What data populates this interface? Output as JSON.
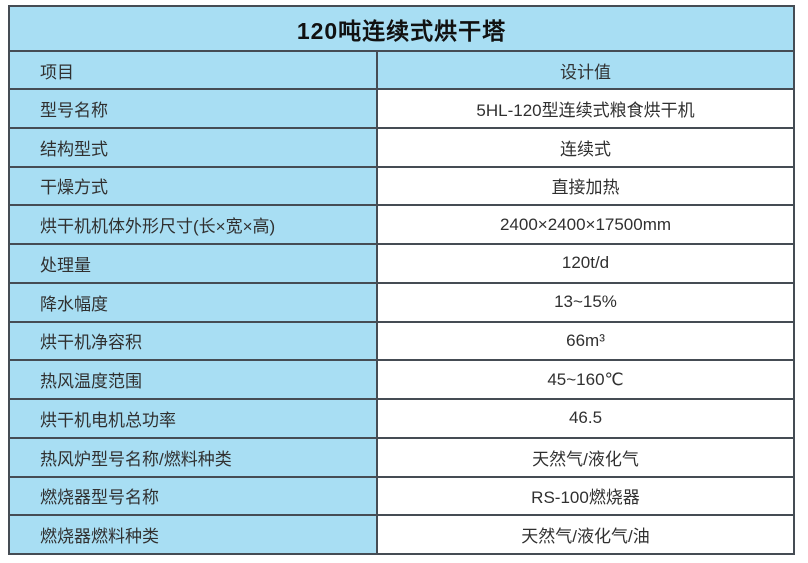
{
  "colors": {
    "cell_blue": "#a8def3",
    "value_cell_bg": "#ffffff",
    "grid_border": "#454c54",
    "title_text": "#111111",
    "body_text": "#303030",
    "page_bg": "#ffffff"
  },
  "table": {
    "title": "120吨连续式烘干塔",
    "header": {
      "item": "项目",
      "value": "设计值"
    },
    "rows": [
      {
        "label": "型号名称",
        "value": "5HL-120型连续式粮食烘干机"
      },
      {
        "label": "结构型式",
        "value": "连续式"
      },
      {
        "label": "干燥方式",
        "value": "直接加热"
      },
      {
        "label": "烘干机机体外形尺寸(长×宽×高)",
        "value": "2400×2400×17500mm"
      },
      {
        "label": "处理量",
        "value": "120t/d"
      },
      {
        "label": "降水幅度",
        "value": "13~15%"
      },
      {
        "label": "烘干机净容积",
        "value": "66m³"
      },
      {
        "label": "热风温度范围",
        "value": "45~160℃"
      },
      {
        "label": "烘干机电机总功率",
        "value": "46.5"
      },
      {
        "label": "热风炉型号名称/燃料种类",
        "value": "天然气/液化气"
      },
      {
        "label": "燃烧器型号名称",
        "value": "RS-100燃烧器"
      },
      {
        "label": "燃烧器燃料种类",
        "value": "天然气/液化气/油"
      }
    ]
  }
}
